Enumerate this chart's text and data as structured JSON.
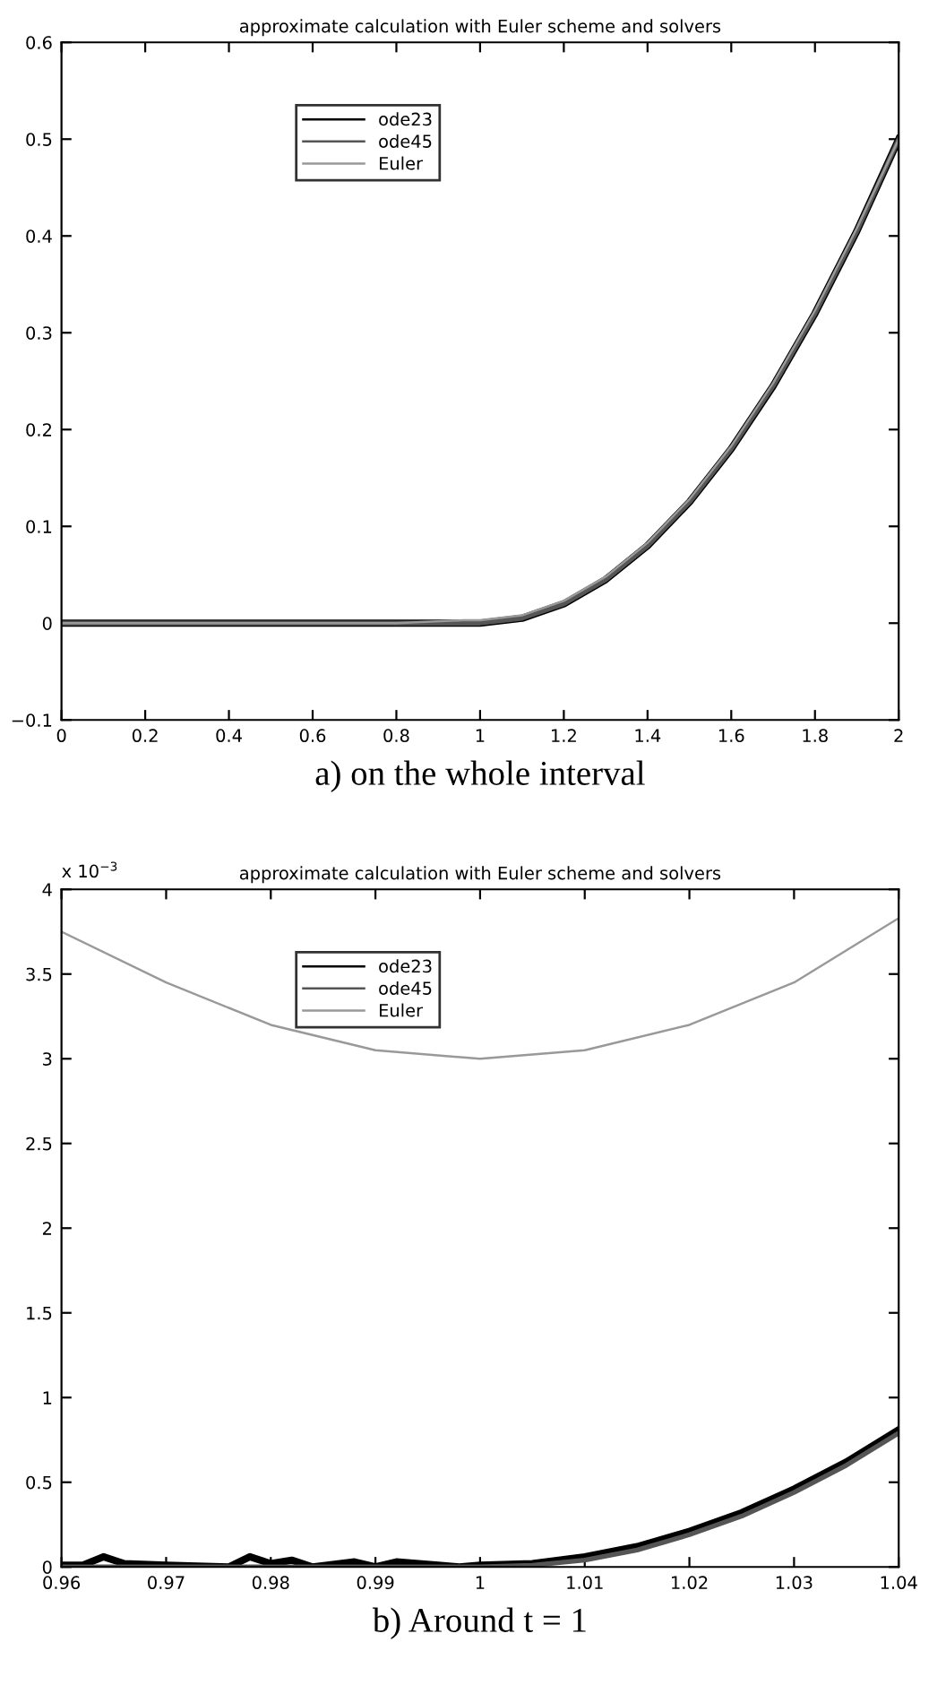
{
  "chart_data": [
    {
      "type": "line",
      "title": "approximate calculation with Euler scheme and solvers",
      "annotations": [
        "a) on the whole interval"
      ],
      "legend": "top left",
      "grid": false,
      "marker": "none",
      "line_style": "solid",
      "xlim": [
        0,
        2
      ],
      "xticks": [
        0,
        0.2,
        0.4,
        0.6,
        0.8,
        1,
        1.2,
        1.4,
        1.6,
        1.8,
        2
      ],
      "ylim": [
        -0.1,
        0.6
      ],
      "yticks": [
        {
          "value": -0.1,
          "label": "−0.1"
        },
        0,
        0.1,
        0.2,
        0.3,
        0.4,
        0.5,
        0.6
      ],
      "series": [
        {
          "name": "ode23",
          "color": "#000000",
          "x": [
            0,
            0.2,
            0.4,
            0.6,
            0.8,
            1,
            1.1,
            1.2,
            1.3,
            1.4,
            1.5,
            1.6,
            1.7,
            1.8,
            1.9,
            2
          ],
          "values": [
            0,
            0,
            0,
            0,
            0,
            0,
            0.005,
            0.02,
            0.045,
            0.08,
            0.125,
            0.18,
            0.245,
            0.32,
            0.405,
            0.5
          ]
        },
        {
          "name": "ode45",
          "color": "#555555",
          "x": [
            0,
            0.2,
            0.4,
            0.6,
            0.8,
            1,
            1.1,
            1.2,
            1.3,
            1.4,
            1.5,
            1.6,
            1.7,
            1.8,
            1.9,
            2
          ],
          "values": [
            0,
            0,
            0,
            0,
            0,
            0,
            0.005,
            0.02,
            0.045,
            0.08,
            0.125,
            0.18,
            0.245,
            0.32,
            0.405,
            0.5
          ]
        },
        {
          "name": "Euler",
          "color": "#999999",
          "x": [
            0,
            0.2,
            0.4,
            0.6,
            0.8,
            0.96,
            1,
            1.1,
            1.2,
            1.3,
            1.4,
            1.5,
            1.6,
            1.7,
            1.8,
            1.9,
            2
          ],
          "values": [
            0,
            0,
            0,
            0,
            0,
            0.003,
            0.003,
            0.008,
            0.023,
            0.048,
            0.083,
            0.128,
            0.183,
            0.248,
            0.323,
            0.408,
            0.5
          ]
        }
      ]
    },
    {
      "type": "line",
      "title": "approximate calculation with Euler scheme and solvers",
      "annotations": [
        "x 10$^{−3}$",
        "b) Around t = 1"
      ],
      "legend": "top left",
      "grid": false,
      "marker": "none",
      "line_style": "solid",
      "xlim": [
        0.96,
        1.04
      ],
      "xticks": [
        0.96,
        0.97,
        0.98,
        0.99,
        1,
        1.01,
        1.02,
        1.03,
        1.04
      ],
      "ylim": [
        0,
        4
      ],
      "yticks": [
        0,
        0.5,
        1,
        1.5,
        2,
        2.5,
        3,
        3.5,
        4
      ],
      "series": [
        {
          "name": "ode23",
          "color": "#000000",
          "x": [
            0.96,
            0.962,
            0.964,
            0.966,
            0.97,
            0.976,
            0.978,
            0.98,
            0.982,
            0.984,
            0.988,
            0.99,
            0.992,
            0.996,
            0.998,
            1,
            1.005,
            1.01,
            1.015,
            1.02,
            1.025,
            1.03,
            1.035,
            1.04
          ],
          "values": [
            0.01,
            0.01,
            0.06,
            0.02,
            0.01,
            0,
            0.06,
            0.02,
            0.04,
            0,
            0.03,
            0,
            0.03,
            0.01,
            0,
            0.01,
            0.02,
            0.06,
            0.12,
            0.21,
            0.32,
            0.46,
            0.62,
            0.81
          ]
        },
        {
          "name": "ode45",
          "color": "#555555",
          "x": [
            0.96,
            0.97,
            0.98,
            0.99,
            1,
            1.005,
            1.01,
            1.015,
            1.02,
            1.025,
            1.03,
            1.035,
            1.04
          ],
          "values": [
            0,
            0,
            0,
            0,
            0,
            0.01,
            0.04,
            0.1,
            0.19,
            0.3,
            0.44,
            0.6,
            0.79
          ]
        },
        {
          "name": "Euler",
          "color": "#999999",
          "x": [
            0.96,
            0.97,
            0.98,
            0.99,
            1,
            1.01,
            1.02,
            1.03,
            1.04
          ],
          "values": [
            3.75,
            3.45,
            3.2,
            3.05,
            3,
            3.05,
            3.2,
            3.45,
            3.83
          ]
        }
      ]
    }
  ]
}
